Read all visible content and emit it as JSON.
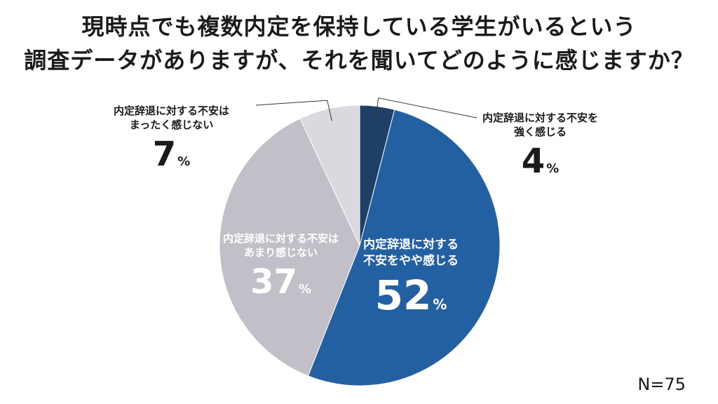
{
  "title": {
    "line1": "現時点でも複数内定を保持している学生がいるという",
    "line2": "調査データがありますが、それを聞いてどのように感じますか？"
  },
  "chart_data": {
    "type": "pie",
    "slices": [
      {
        "label_line1": "内定辞退に対する不安を",
        "label_line2": "強く感じる",
        "value": 4,
        "display": "4",
        "color": "#1e3f66"
      },
      {
        "label_line1": "内定辞退に対する",
        "label_line2": "不安をやや感じる",
        "value": 52,
        "display": "52",
        "color": "#2360a1"
      },
      {
        "label_line1": "内定辞退に対する不安は",
        "label_line2": "あまり感じない",
        "value": 37,
        "display": "37",
        "color": "#c3bfc9"
      },
      {
        "label_line1": "内定辞退に対する不安は",
        "label_line2": "まったく感じない",
        "value": 7,
        "display": "7",
        "color": "#dcd9de"
      }
    ],
    "unit": "%"
  },
  "sample_size": "N=75"
}
